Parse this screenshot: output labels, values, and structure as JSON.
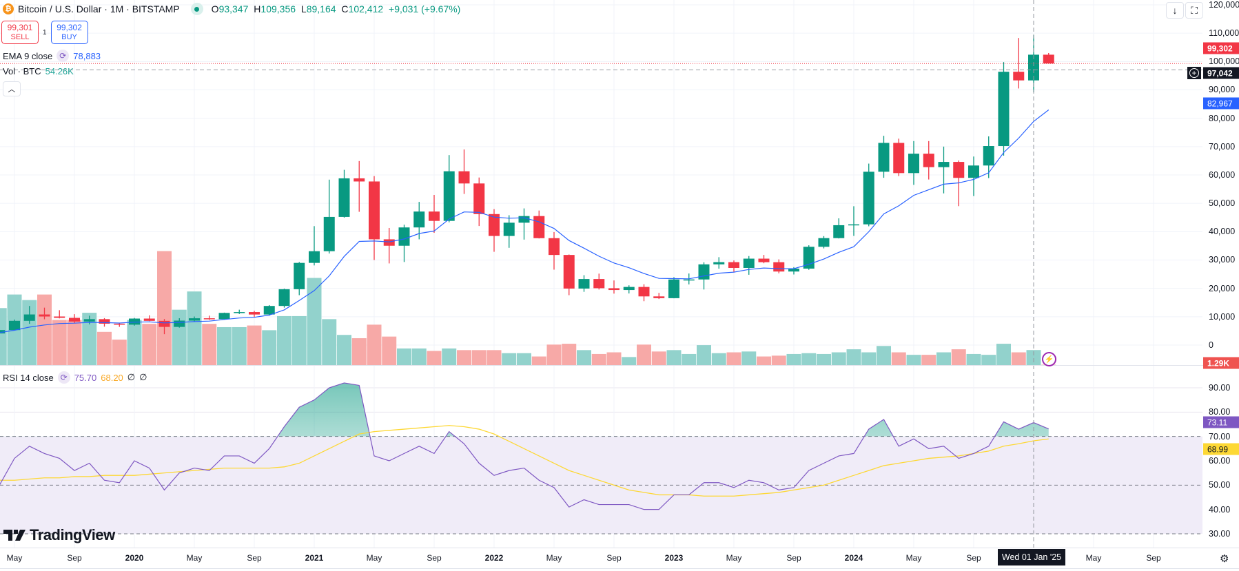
{
  "header": {
    "coin_icon": "bitcoin-icon",
    "symbol_title": "Bitcoin / U.S. Dollar · 1M · BITSTAMP",
    "ohlc": {
      "o_label": "O",
      "o": "93,347",
      "h_label": "H",
      "h": "109,356",
      "l_label": "L",
      "l": "89,164",
      "c_label": "C",
      "c": "102,412",
      "change": "+9,031 (+9.67%)"
    }
  },
  "trade": {
    "sell_price": "99,301",
    "sell_label": "SELL",
    "spread": "1",
    "buy_price": "99,302",
    "buy_label": "BUY"
  },
  "indicators": {
    "ema": {
      "label": "EMA 9 close",
      "value": "78,883"
    },
    "vol": {
      "label": "Vol · BTC",
      "value": "54.26K"
    },
    "rsi": {
      "label": "RSI 14 close",
      "value": "75.70",
      "ma_value": "68.20",
      "extra1": "∅",
      "extra2": "∅"
    }
  },
  "toolbar": {
    "scroll_icon": "arrow-down-icon",
    "fullscreen_icon": "fullscreen-icon",
    "collapse_icon": "chevron-up-icon",
    "settings_icon": "gear-icon"
  },
  "price_labels": {
    "current": "99,302",
    "crosshair": "97,042",
    "ema": "82,967",
    "volume": "1.29K",
    "rsi": "73.11",
    "rsi_ma": "68.99"
  },
  "crosshair_date": "Wed 01 Jan '25",
  "logo": "TradingView",
  "colors": {
    "up": "#089981",
    "down": "#f23645",
    "up_vol": "#92d2cc",
    "down_vol": "#f7a9a7",
    "ema": "#2962ff",
    "rsi": "#7e57c2",
    "rsi_ma": "#fdd835",
    "rsi_band": "#f0ecf8"
  },
  "chart_data": {
    "type": "candlestick",
    "title": "Bitcoin / U.S. Dollar · 1M · BITSTAMP",
    "price_axis": {
      "ticks": [
        "120,000",
        "110,000",
        "100,000",
        "90,000",
        "80,000",
        "70,000",
        "60,000",
        "50,000",
        "40,000",
        "30,000",
        "20,000",
        "10,000",
        "0"
      ],
      "ylim": [
        0,
        120000
      ]
    },
    "rsi_axis": {
      "ticks": [
        "90.00",
        "80.00",
        "70.00",
        "60.00",
        "50.00",
        "40.00",
        "30.00"
      ],
      "levels": [
        70,
        50,
        30
      ]
    },
    "time_axis": [
      {
        "label": "May",
        "date": "2019-05"
      },
      {
        "label": "Sep",
        "date": "2019-09"
      },
      {
        "label": "2020",
        "date": "2020-01",
        "year": true
      },
      {
        "label": "May",
        "date": "2020-05"
      },
      {
        "label": "Sep",
        "date": "2020-09"
      },
      {
        "label": "2021",
        "date": "2021-01",
        "year": true
      },
      {
        "label": "May",
        "date": "2021-05"
      },
      {
        "label": "Sep",
        "date": "2021-09"
      },
      {
        "label": "2022",
        "date": "2022-01",
        "year": true
      },
      {
        "label": "May",
        "date": "2022-05"
      },
      {
        "label": "Sep",
        "date": "2022-09"
      },
      {
        "label": "2023",
        "date": "2023-01",
        "year": true
      },
      {
        "label": "May",
        "date": "2023-05"
      },
      {
        "label": "Sep",
        "date": "2023-09"
      },
      {
        "label": "2024",
        "date": "2024-01",
        "year": true
      },
      {
        "label": "May",
        "date": "2024-05"
      },
      {
        "label": "Sep",
        "date": "2024-09"
      },
      {
        "label": "May",
        "date": "2025-05"
      },
      {
        "label": "Sep",
        "date": "2025-09"
      }
    ],
    "crosshair": {
      "date": "2025-01",
      "price": 97042
    },
    "current_price": 99302,
    "ema9_start": 4400,
    "candles": [
      [
        "2019-04",
        4100,
        5600,
        4000,
        5300
      ],
      [
        "2019-05",
        5300,
        9000,
        5300,
        8550
      ],
      [
        "2019-06",
        8550,
        13800,
        7500,
        10800
      ],
      [
        "2019-07",
        10800,
        13200,
        9100,
        10080
      ],
      [
        "2019-08",
        10080,
        12300,
        9400,
        9600
      ],
      [
        "2019-09",
        9600,
        10900,
        7700,
        8300
      ],
      [
        "2019-10",
        8300,
        10350,
        7300,
        9150
      ],
      [
        "2019-11",
        9150,
        9500,
        6500,
        7550
      ],
      [
        "2019-12",
        7550,
        7750,
        6430,
        7200
      ],
      [
        "2020-01",
        7200,
        9580,
        6850,
        9350
      ],
      [
        "2020-02",
        9350,
        10500,
        8450,
        8540
      ],
      [
        "2020-03",
        8540,
        9180,
        3850,
        6410
      ],
      [
        "2020-04",
        6410,
        9470,
        6150,
        8630
      ],
      [
        "2020-05",
        8630,
        10080,
        8120,
        9450
      ],
      [
        "2020-06",
        9450,
        10380,
        8900,
        9140
      ],
      [
        "2020-07",
        9140,
        11450,
        8970,
        11350
      ],
      [
        "2020-08",
        11350,
        12480,
        10950,
        11650
      ],
      [
        "2020-09",
        11650,
        12090,
        9880,
        10780
      ],
      [
        "2020-10",
        10780,
        14100,
        10370,
        13800
      ],
      [
        "2020-11",
        13800,
        19900,
        13200,
        19700
      ],
      [
        "2020-12",
        19700,
        29300,
        17600,
        28990
      ],
      [
        "2021-01",
        28990,
        41950,
        28100,
        33110
      ],
      [
        "2021-02",
        33110,
        58350,
        32300,
        45200
      ],
      [
        "2021-03",
        45200,
        61800,
        44950,
        58800
      ],
      [
        "2021-04",
        58800,
        64900,
        47000,
        57700
      ],
      [
        "2021-05",
        57700,
        59600,
        30000,
        37300
      ],
      [
        "2021-06",
        37300,
        41300,
        28800,
        35040
      ],
      [
        "2021-07",
        35040,
        42450,
        29300,
        41490
      ],
      [
        "2021-08",
        41490,
        50500,
        37300,
        47100
      ],
      [
        "2021-09",
        47100,
        52950,
        39600,
        43800
      ],
      [
        "2021-10",
        43800,
        67000,
        43300,
        61300
      ],
      [
        "2021-11",
        61300,
        69000,
        53300,
        57000
      ],
      [
        "2021-12",
        57000,
        59100,
        42000,
        46200
      ],
      [
        "2022-01",
        46200,
        47950,
        32900,
        38480
      ],
      [
        "2022-02",
        38480,
        45800,
        34300,
        43160
      ],
      [
        "2022-03",
        43160,
        48200,
        37200,
        45500
      ],
      [
        "2022-04",
        45500,
        47450,
        37600,
        37700
      ],
      [
        "2022-05",
        37700,
        39850,
        26600,
        31790
      ],
      [
        "2022-06",
        31790,
        31950,
        17600,
        19930
      ],
      [
        "2022-07",
        19930,
        24650,
        18780,
        23300
      ],
      [
        "2022-08",
        23300,
        25200,
        19600,
        20050
      ],
      [
        "2022-09",
        20050,
        22800,
        18150,
        19420
      ],
      [
        "2022-10",
        19420,
        21080,
        18200,
        20500
      ],
      [
        "2022-11",
        20500,
        21450,
        15480,
        17170
      ],
      [
        "2022-12",
        17170,
        18400,
        16250,
        16540
      ],
      [
        "2023-01",
        16540,
        23950,
        16500,
        23130
      ],
      [
        "2023-02",
        23130,
        25250,
        21400,
        23140
      ],
      [
        "2023-03",
        23140,
        29200,
        19600,
        28470
      ],
      [
        "2023-04",
        28470,
        31000,
        26950,
        29250
      ],
      [
        "2023-05",
        29250,
        29850,
        25800,
        27210
      ],
      [
        "2023-06",
        27210,
        31400,
        24800,
        30480
      ],
      [
        "2023-07",
        30480,
        31800,
        28860,
        29230
      ],
      [
        "2023-08",
        29230,
        30230,
        25300,
        25940
      ],
      [
        "2023-09",
        25940,
        27500,
        24900,
        26970
      ],
      [
        "2023-10",
        26970,
        35200,
        26550,
        34660
      ],
      [
        "2023-11",
        34660,
        38430,
        34100,
        37720
      ],
      [
        "2023-12",
        37720,
        44700,
        37600,
        42280
      ],
      [
        "2024-01",
        42280,
        48970,
        38500,
        42580
      ],
      [
        "2024-02",
        42580,
        64000,
        41900,
        61130
      ],
      [
        "2024-03",
        61130,
        73800,
        59000,
        71300
      ],
      [
        "2024-04",
        71300,
        72800,
        59600,
        60650
      ],
      [
        "2024-05",
        60650,
        71950,
        56500,
        67500
      ],
      [
        "2024-06",
        67500,
        71950,
        58400,
        62750
      ],
      [
        "2024-07",
        62750,
        70000,
        53500,
        64600
      ],
      [
        "2024-08",
        64600,
        65100,
        49000,
        58970
      ],
      [
        "2024-09",
        58970,
        66500,
        52550,
        63330
      ],
      [
        "2024-10",
        63330,
        73600,
        58900,
        70200
      ],
      [
        "2024-11",
        70200,
        99800,
        66800,
        96400
      ],
      [
        "2024-12",
        96400,
        108300,
        90500,
        93350
      ],
      [
        "2025-01",
        93347,
        109356,
        89164,
        102412
      ],
      [
        "2025-02",
        102412,
        103000,
        99300,
        99302
      ]
    ],
    "volume_k": [
      206,
      255,
      235,
      255,
      163,
      163,
      189,
      120,
      92,
      163,
      149,
      412,
      200,
      266,
      149,
      137,
      137,
      143,
      126,
      177,
      177,
      315,
      166,
      109,
      97,
      146,
      103,
      60,
      60,
      51,
      60,
      54,
      54,
      54,
      43,
      43,
      31,
      74,
      77,
      54,
      40,
      46,
      29,
      74,
      49,
      54,
      40,
      72,
      43,
      46,
      49,
      31,
      34,
      40,
      43,
      40,
      46,
      57,
      46,
      69,
      46,
      37,
      37,
      46,
      57,
      40,
      37,
      77,
      46,
      54.26,
      1.29
    ],
    "rsi": [
      50,
      61,
      66,
      63,
      61,
      56,
      59,
      52,
      51,
      60,
      57,
      48,
      55,
      57,
      56,
      62,
      62,
      59,
      65,
      74,
      82,
      85,
      90,
      92,
      91,
      62,
      60,
      63,
      66,
      63,
      72,
      67,
      59,
      54,
      56,
      57,
      52,
      49,
      41,
      44,
      42,
      42,
      42,
      40,
      40,
      46,
      46,
      51,
      51,
      49,
      52,
      51,
      48,
      49,
      56,
      59,
      62,
      63,
      73,
      77,
      66,
      69,
      65,
      66,
      61,
      63,
      66,
      76,
      73,
      75.7,
      73.11
    ],
    "rsi_ma": [
      52,
      52,
      52.5,
      53,
      53,
      53.5,
      53.5,
      54,
      54,
      54,
      54.5,
      55,
      55.5,
      56,
      56.5,
      57,
      57,
      57,
      57,
      57.5,
      59,
      62,
      65,
      68,
      71,
      72,
      72.5,
      73,
      73.5,
      74,
      74.5,
      74,
      73,
      71,
      68,
      65,
      62,
      59,
      56,
      54,
      52,
      50,
      48,
      47,
      46,
      46,
      46,
      45.5,
      45.5,
      45.5,
      46,
      46.5,
      47,
      48,
      49,
      50,
      52,
      54,
      56,
      58,
      59,
      60,
      61,
      61.5,
      62,
      63,
      64,
      66,
      67,
      68.2,
      68.99
    ]
  }
}
